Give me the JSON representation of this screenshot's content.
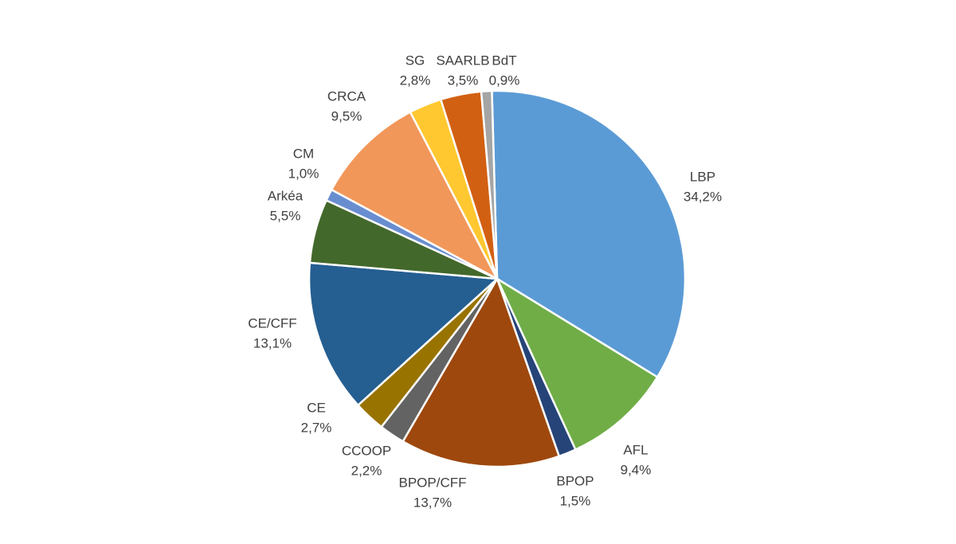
{
  "chart_data": {
    "type": "pie",
    "title": "",
    "start_angle_deg": -1.6,
    "direction": "clockwise",
    "slices": [
      {
        "label": "LBP",
        "value_text": "34,2%",
        "value": 34.2,
        "color": "#5b9bd5"
      },
      {
        "label": "AFL",
        "value_text": "9,4%",
        "value": 9.4,
        "color": "#70ad47"
      },
      {
        "label": "BPOP",
        "value_text": "1,5%",
        "value": 1.5,
        "color": "#264478"
      },
      {
        "label": "BPOP/CFF",
        "value_text": "13,7%",
        "value": 13.7,
        "color": "#9e480e"
      },
      {
        "label": "CCOOP",
        "value_text": "2,2%",
        "value": 2.2,
        "color": "#636363"
      },
      {
        "label": "CE",
        "value_text": "2,7%",
        "value": 2.7,
        "color": "#997300"
      },
      {
        "label": "CE/CFF",
        "value_text": "13,1%",
        "value": 13.1,
        "color": "#255e91"
      },
      {
        "label": "Arkéa",
        "value_text": "5,5%",
        "value": 5.5,
        "color": "#43682b"
      },
      {
        "label": "CM",
        "value_text": "1,0%",
        "value": 1.0,
        "color": "#698ed0"
      },
      {
        "label": "CRCA",
        "value_text": "9,5%",
        "value": 9.5,
        "color": "#f1975a"
      },
      {
        "label": "SG",
        "value_text": "2,8%",
        "value": 2.8,
        "color": "#ffc830"
      },
      {
        "label": "SAARLB",
        "value_text": "3,5%",
        "value": 3.5,
        "color": "#d26012"
      },
      {
        "label": "BdT",
        "value_text": "0,9%",
        "value": 0.9,
        "color": "#a5a5a5"
      }
    ]
  }
}
